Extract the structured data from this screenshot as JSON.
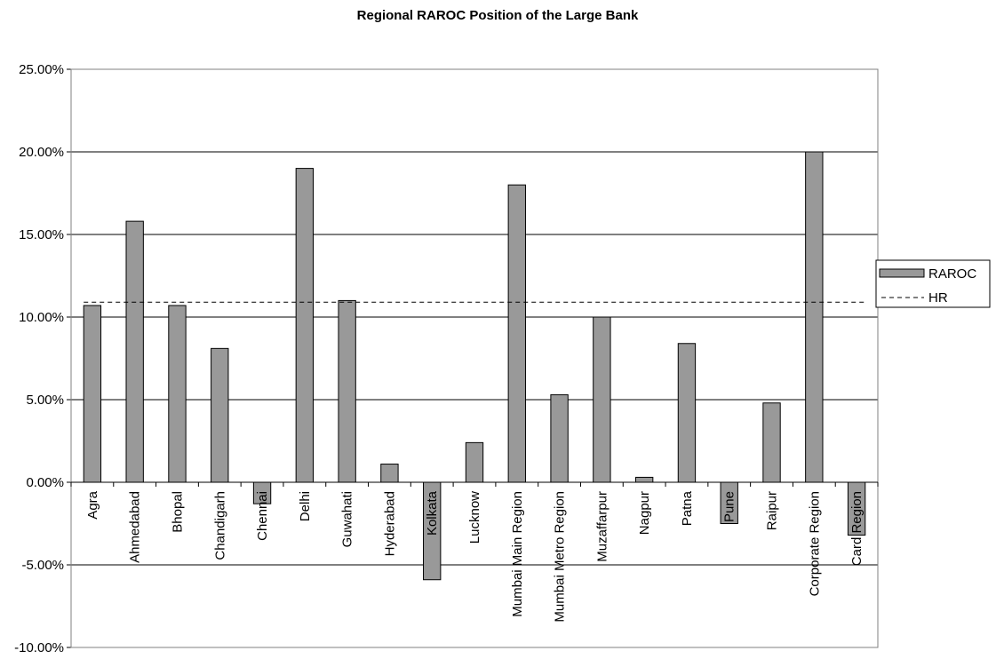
{
  "chart_data": {
    "type": "bar",
    "title": "Regional RAROC Position of the Large Bank",
    "xlabel": "",
    "ylabel": "",
    "ylim": [
      -0.1,
      0.25
    ],
    "yticks": [
      -0.1,
      -0.05,
      0.0,
      0.05,
      0.1,
      0.15,
      0.2,
      0.25
    ],
    "ytick_labels": [
      "-10.00%",
      "-5.00%",
      "0.00%",
      "5.00%",
      "10.00%",
      "15.00%",
      "20.00%",
      "25.00%"
    ],
    "grid": true,
    "legend_position": "right",
    "categories": [
      "Agra",
      "Ahmedabad",
      "Bhopal",
      "Chandigarh",
      "Chennai",
      "Delhi",
      "Guwahati",
      "Hyderabad",
      "Kolkata",
      "Lucknow",
      "Mumbai Main Region",
      "Mumbai Metro Region",
      "Muzaffarpur",
      "Nagpur",
      "Patna",
      "Pune",
      "Raipur",
      "Corporate Region",
      "Card Region"
    ],
    "series": [
      {
        "name": "RAROC",
        "kind": "bar",
        "color": "#999999",
        "values": [
          0.107,
          0.158,
          0.107,
          0.081,
          -0.013,
          0.19,
          0.11,
          0.011,
          -0.059,
          0.024,
          0.18,
          0.053,
          0.1,
          0.003,
          0.084,
          -0.025,
          0.048,
          0.2,
          -0.032
        ]
      },
      {
        "name": "HR",
        "kind": "hline",
        "color": "#000000",
        "value": 0.109
      }
    ]
  }
}
